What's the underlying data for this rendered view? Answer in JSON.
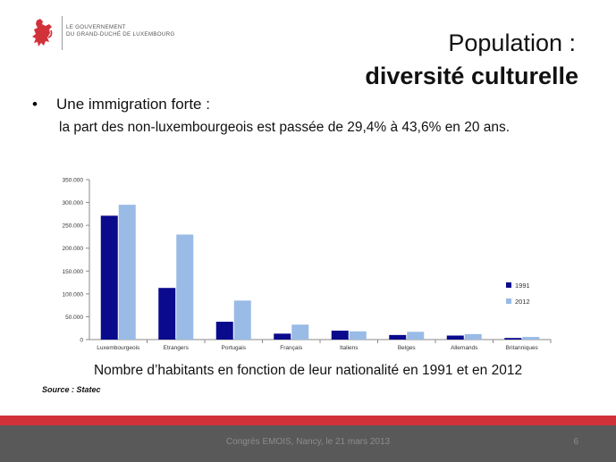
{
  "logo": {
    "line1": "LE GOUVERNEMENT",
    "line2": "DU GRAND-DUCHÉ DE LUXEMBOURG",
    "icon": "red-lion-icon",
    "color": "#d1323a"
  },
  "title": {
    "line1": "Population :",
    "line2": "diversité culturelle"
  },
  "bullet": {
    "symbol": "•",
    "text": "Une immigration forte :",
    "subtext": "la part des non-luxembourgeois est passée de 29,4% à 43,6% en 20 ans."
  },
  "chart_data": {
    "type": "bar",
    "categories": [
      "Luxembourgeois",
      "Etrangers",
      "Portugais",
      "Français",
      "Italiens",
      "Belges",
      "Allemands",
      "Britanniques"
    ],
    "series": [
      {
        "name": "1991",
        "color": "#0a0a8c",
        "values": [
          271000,
          113000,
          39000,
          13000,
          19500,
          10000,
          8800,
          3500
        ]
      },
      {
        "name": "2012",
        "color": "#99bbe6",
        "values": [
          295000,
          229800,
          85300,
          32700,
          18000,
          17000,
          12000,
          5700
        ]
      }
    ],
    "yticks": [
      "0",
      "50.000",
      "100.000",
      "150.000",
      "200.000",
      "250.000",
      "300.000",
      "350.000"
    ],
    "ylim": [
      0,
      350000
    ],
    "legend": "right",
    "grid": false
  },
  "caption": "Nombre d’habitants en fonction de leur nationalité en 1991 et en 2012",
  "source": "Source : Statec",
  "footer": {
    "text": "Congrès EMOIS, Nancy, le 21 mars 2013",
    "page": "6"
  }
}
